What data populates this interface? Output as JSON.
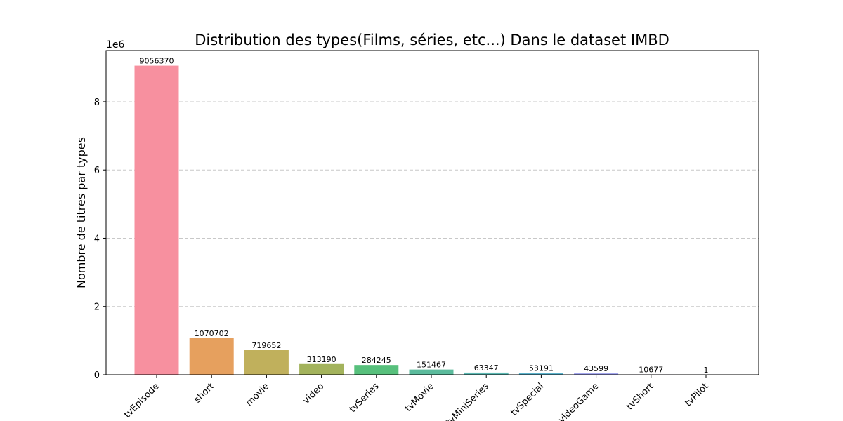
{
  "chart_data": {
    "type": "bar",
    "title": "Distribution des types(Films, séries, etc...) Dans le dataset IMBD",
    "xlabel": "",
    "ylabel": "Nombre de titres par types",
    "y_offset_label": "1e6",
    "ylim": [
      0,
      9500000
    ],
    "yticks": [
      0,
      2000000,
      4000000,
      6000000,
      8000000
    ],
    "ytick_labels": [
      "0",
      "2",
      "4",
      "6",
      "8"
    ],
    "grid": {
      "y": true,
      "x": false,
      "style": "dashed"
    },
    "categories": [
      "tvEpisode",
      "short",
      "movie",
      "video",
      "tvSeries",
      "tvMovie",
      "tvMiniSeries",
      "tvSpecial",
      "videoGame",
      "tvShort",
      "tvPilot"
    ],
    "values": [
      9056370,
      1070702,
      719652,
      313190,
      284245,
      151467,
      63347,
      53191,
      43599,
      10677,
      1
    ],
    "data_labels": [
      "9056370",
      "1070702",
      "719652",
      "313190",
      "284245",
      "151467",
      "63347",
      "53191",
      "43599",
      "10677",
      "1"
    ],
    "colors": [
      "#f7909f",
      "#e6a05e",
      "#c0b05c",
      "#a3b35c",
      "#57c07c",
      "#5bbb9c",
      "#5cb8b2",
      "#5cb2cb",
      "#a3a6ee",
      "#d8a0ea",
      "#f798d0"
    ]
  }
}
